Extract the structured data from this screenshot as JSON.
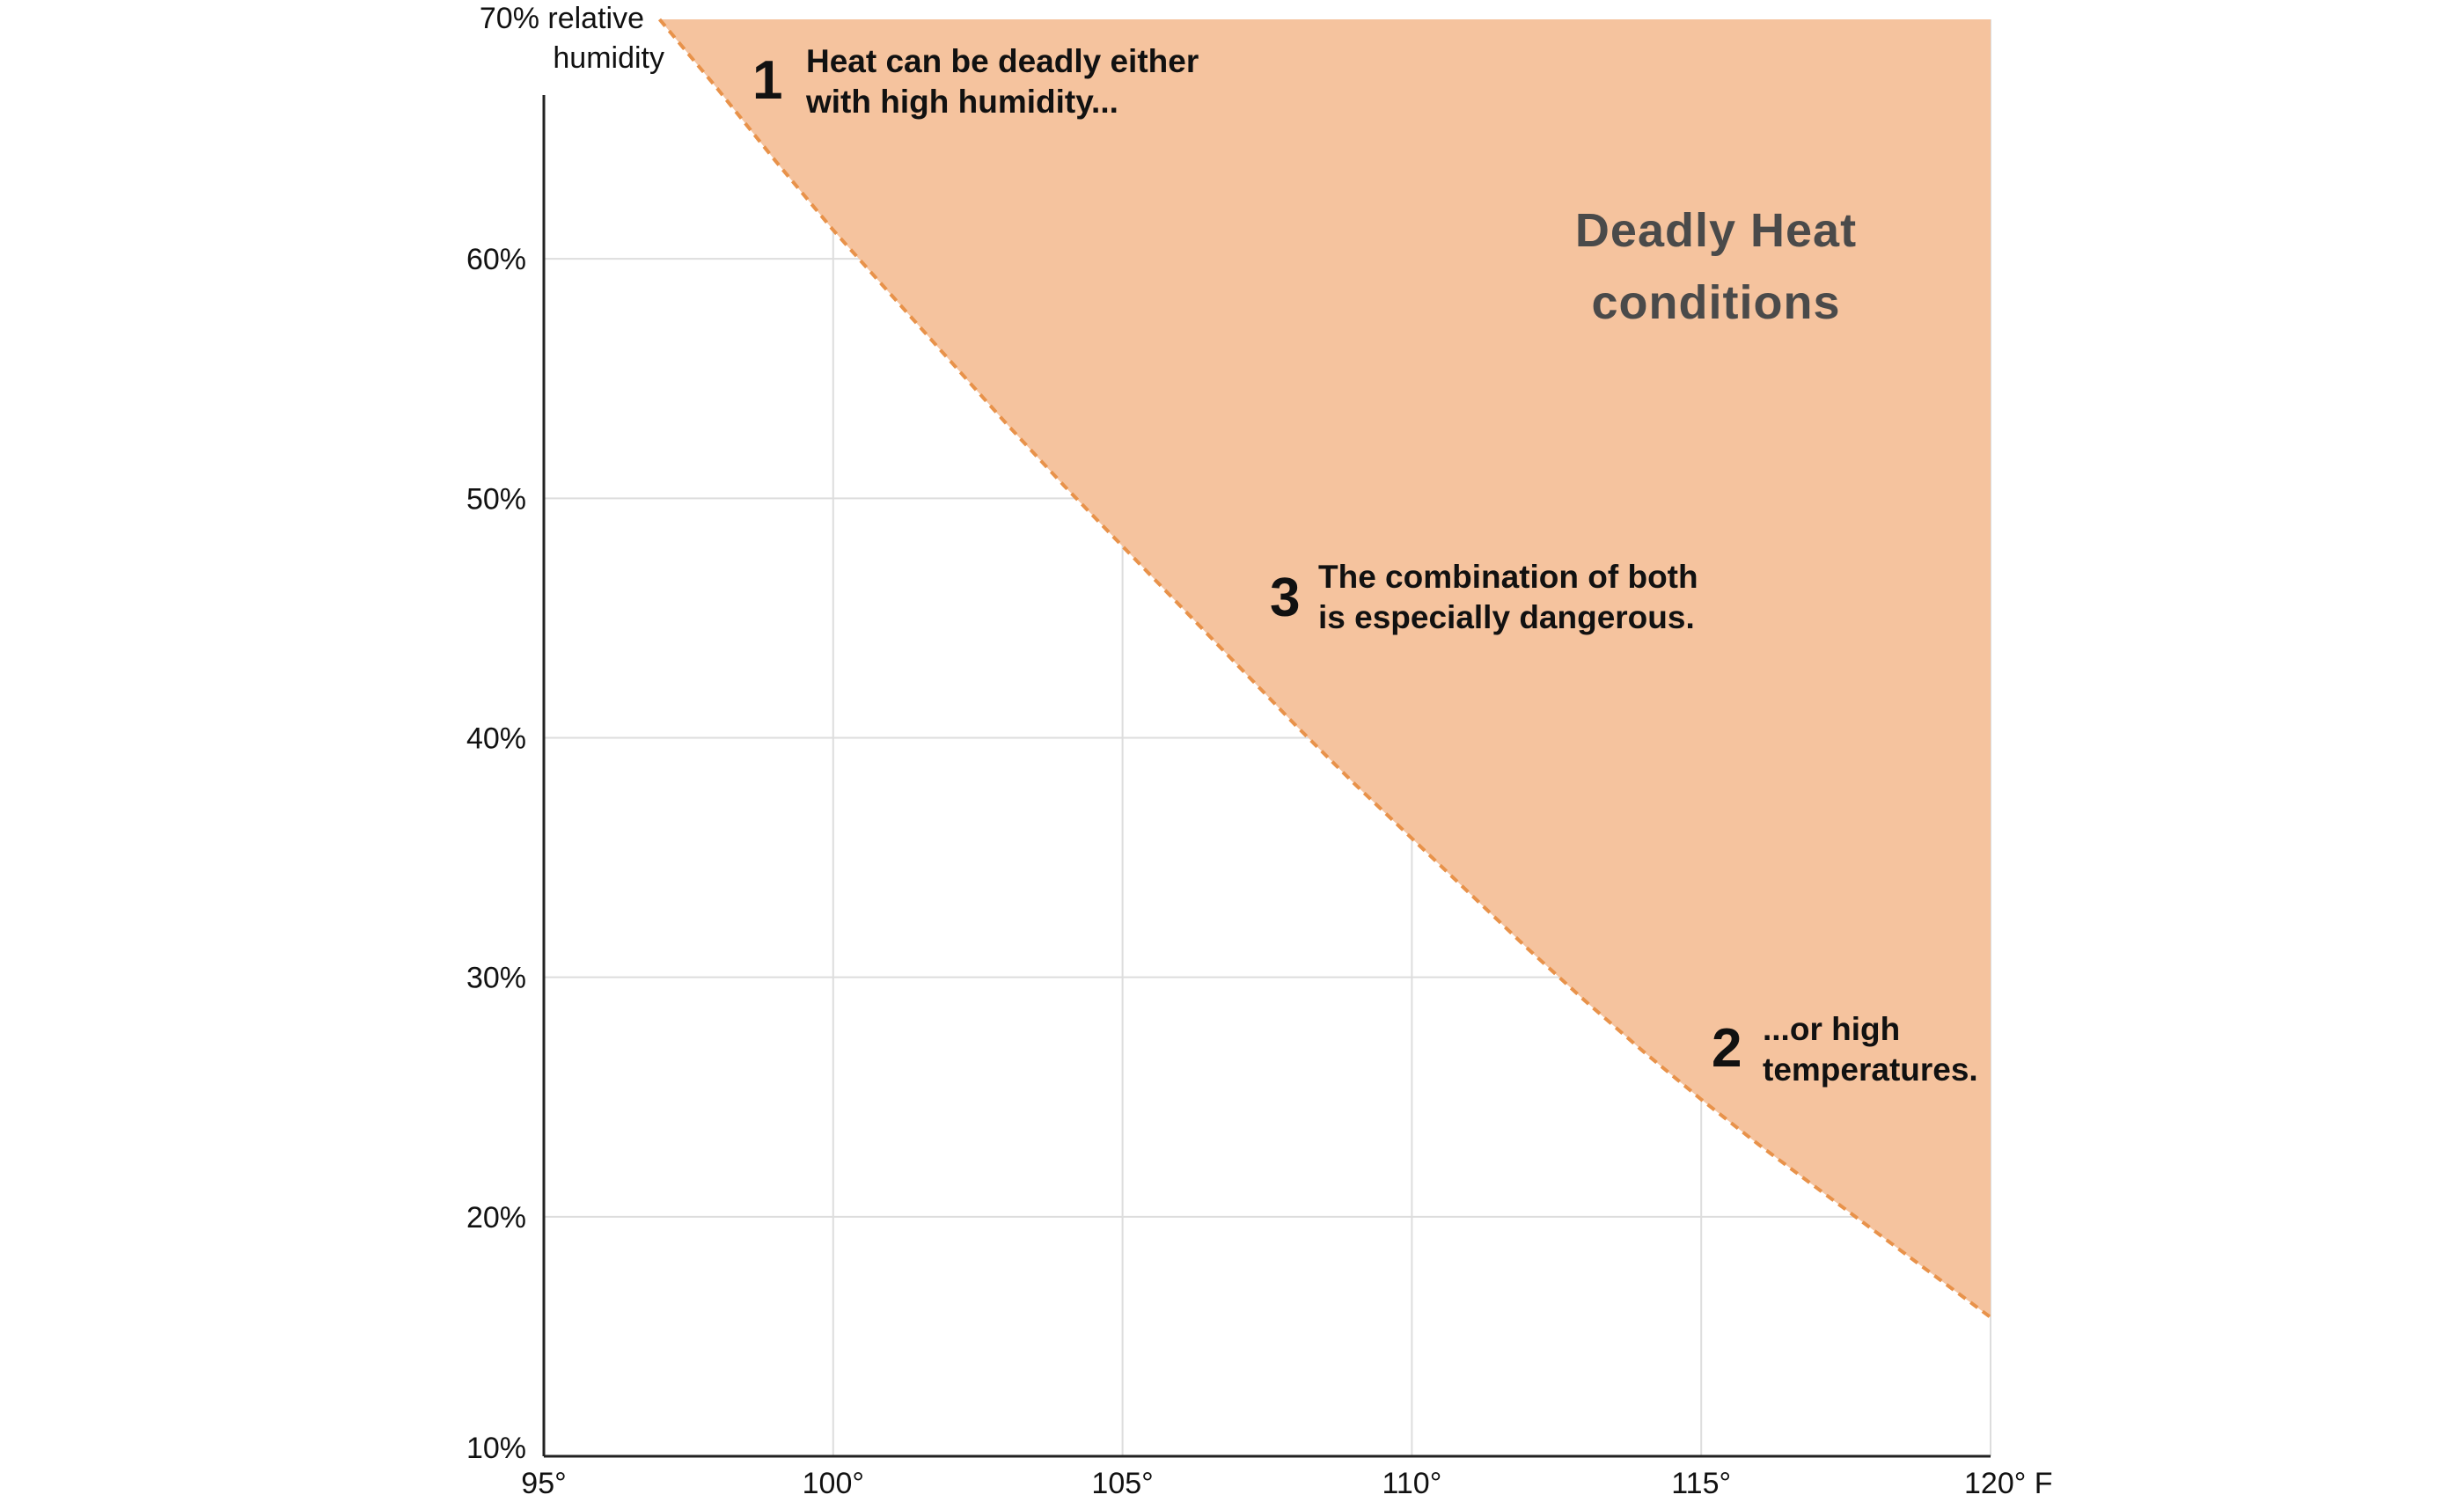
{
  "chart_data": {
    "type": "area",
    "x_axis": {
      "range": [
        95,
        120
      ],
      "ticks": [
        95,
        100,
        105,
        110,
        115,
        120
      ],
      "tick_labels": [
        "95°",
        "100°",
        "105°",
        "110°",
        "115°",
        "120° F"
      ]
    },
    "y_axis": {
      "range": [
        10,
        70
      ],
      "ticks": [
        20,
        30,
        40,
        50,
        60
      ],
      "tick_labels": [
        "20%",
        "30%",
        "40%",
        "50%",
        "60%"
      ],
      "bottom_label": "10%",
      "top_label": [
        "70% relative",
        "humidity"
      ]
    },
    "grid": true,
    "boundary": {
      "style": "dashed",
      "x": [
        97,
        98,
        99,
        100,
        101,
        102,
        103,
        104,
        105,
        106,
        107,
        108,
        109,
        110,
        111,
        112,
        113,
        114,
        115,
        116,
        117,
        118,
        119,
        120
      ],
      "y": [
        70,
        67.1,
        64.1,
        61.2,
        58.5,
        55.8,
        53.1,
        50.5,
        48.0,
        45.5,
        43.0,
        40.5,
        38.1,
        35.8,
        33.5,
        31.2,
        29.0,
        26.9,
        24.9,
        23.0,
        21.2,
        19.4,
        17.6,
        15.8
      ]
    },
    "region_label": [
      "Deadly Heat",
      "conditions"
    ],
    "annotations": [
      {
        "number": "1",
        "lines": [
          "Heat can be deadly either",
          "with high humidity..."
        ]
      },
      {
        "number": "2",
        "lines": [
          "...or high",
          "temperatures."
        ]
      },
      {
        "number": "3",
        "lines": [
          "The combination of both",
          "is especially dangerous."
        ]
      }
    ],
    "colors": {
      "fill": "#f5c39e",
      "boundary": "#e8924a",
      "grid": "#dddddd",
      "axis": "#222222"
    }
  }
}
